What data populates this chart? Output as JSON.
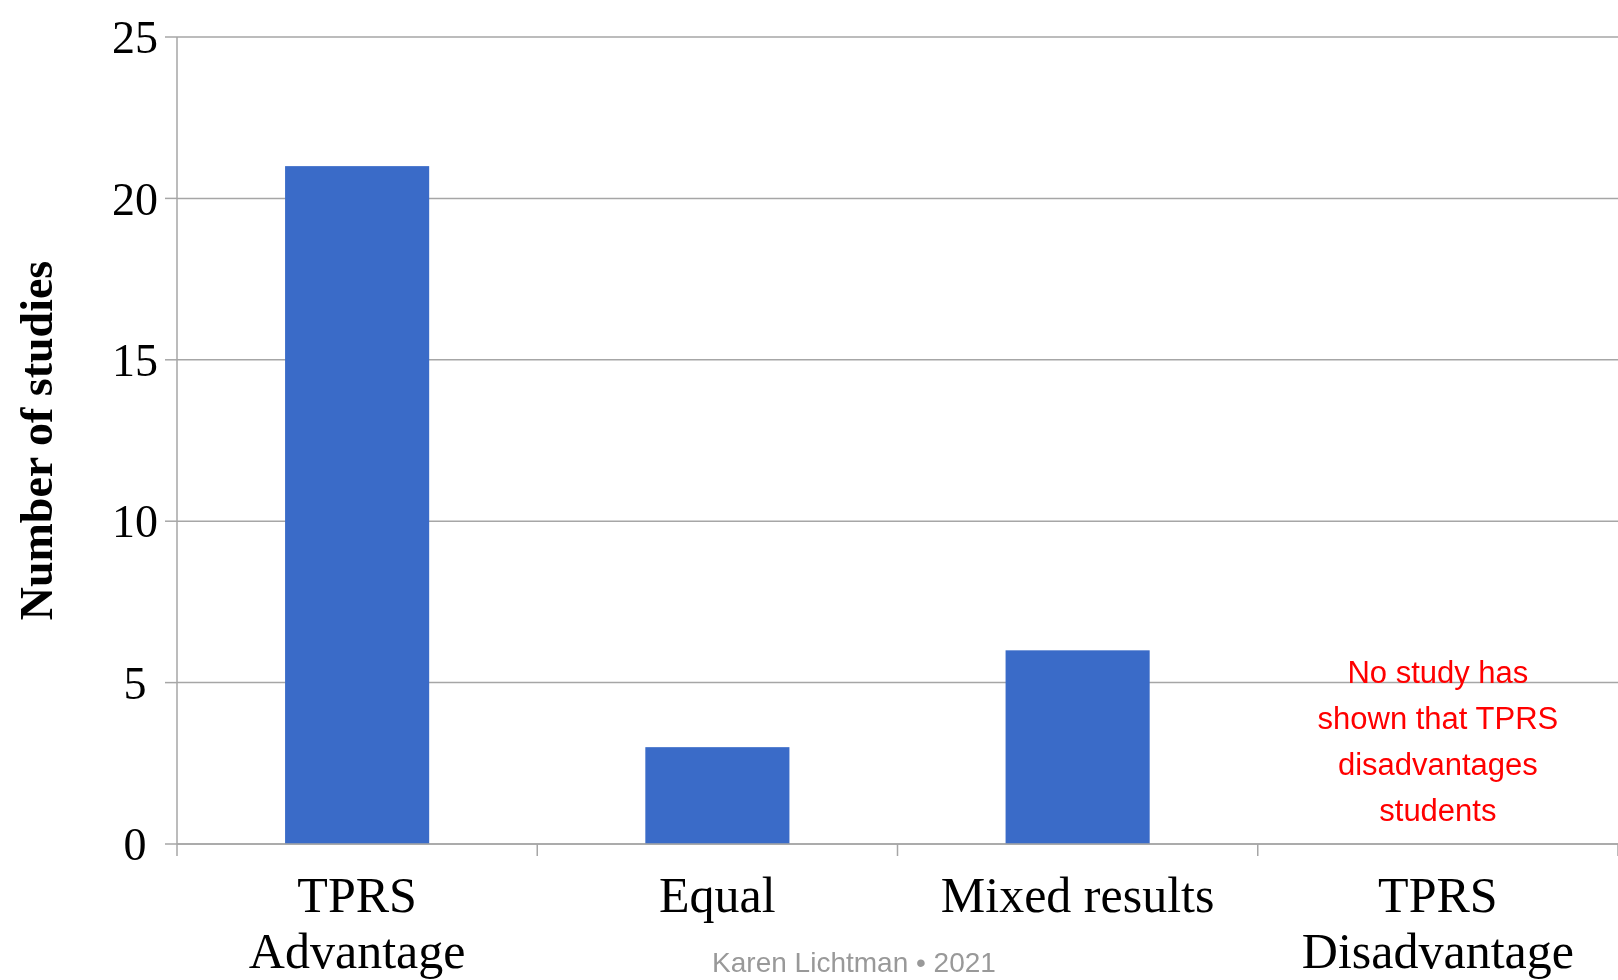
{
  "chart_data": {
    "type": "bar",
    "ylabel": "Number of studies",
    "categories": [
      "TPRS\nAdvantage",
      "Equal",
      "Mixed results",
      "TPRS\nDisadvantage"
    ],
    "values": [
      21,
      3,
      6,
      0
    ],
    "color": "#3a6bc8",
    "ylim": [
      0,
      25
    ],
    "yticks": [
      0,
      5,
      10,
      15,
      20,
      25
    ],
    "grid": "y",
    "annotations": [
      "No study has\nshown that TPRS\ndisadvantages\nstudents",
      "Karen Lichtman • 2021"
    ]
  }
}
